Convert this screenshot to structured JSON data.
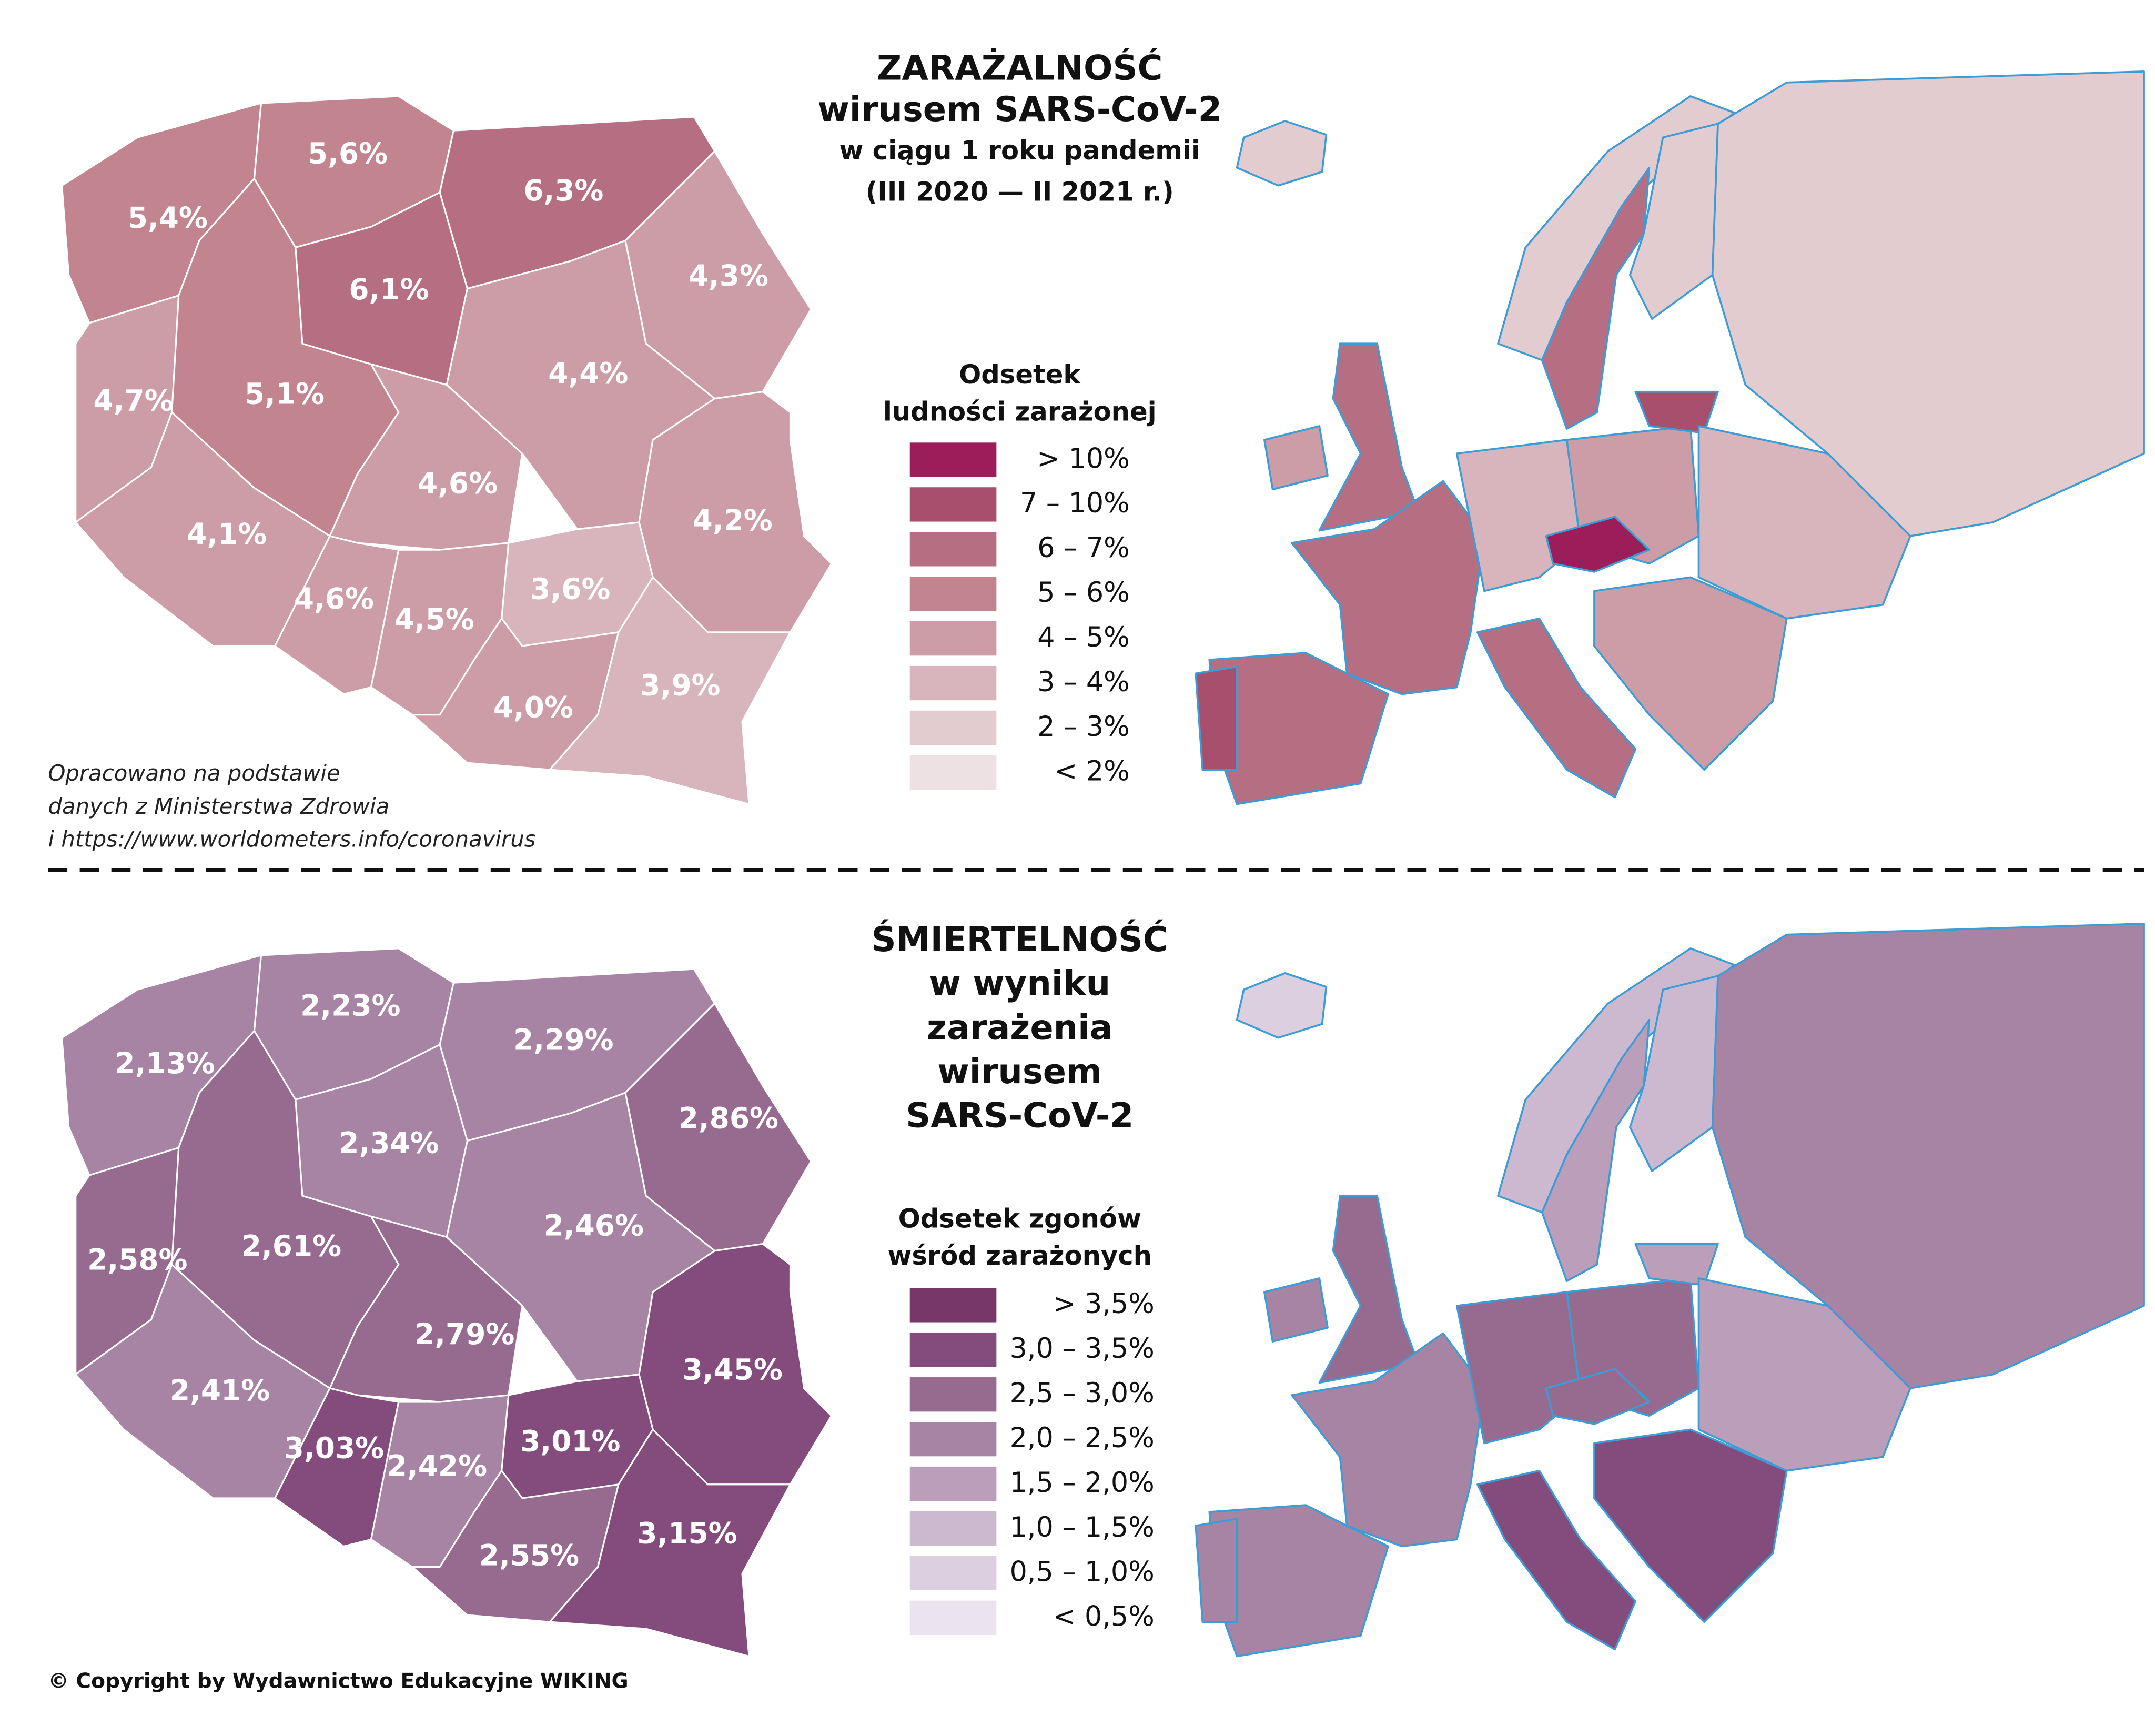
{
  "top": {
    "title": [
      "ZARAŻALNOŚĆ",
      "wirusem SARS-CoV-2",
      "w ciągu 1 roku pandemii",
      "(III 2020 — II 2021 r.)"
    ],
    "legend": {
      "title": [
        "Odsetek",
        "ludności zarażonej"
      ],
      "items": [
        {
          "label": "> 10%",
          "color": "#9b1d5a"
        },
        {
          "label": "7 – 10%",
          "color": "#a94f6e"
        },
        {
          "label": "6 –   7%",
          "color": "#b66f82"
        },
        {
          "label": "5 –   6%",
          "color": "#c2848f"
        },
        {
          "label": "4 –   5%",
          "color": "#cc9ca7"
        },
        {
          "label": "3 –   4%",
          "color": "#d8b5bc"
        },
        {
          "label": "2 –   3%",
          "color": "#e3ccd0"
        },
        {
          "label": "<   2%",
          "color": "#ede1e3"
        }
      ]
    },
    "regions": [
      {
        "label": "5,4%",
        "color": "#c2848f"
      },
      {
        "label": "5,6%",
        "color": "#c2848f"
      },
      {
        "label": "6,3%",
        "color": "#b66f82"
      },
      {
        "label": "6,1%",
        "color": "#b66f82"
      },
      {
        "label": "4,3%",
        "color": "#cc9ca7"
      },
      {
        "label": "4,7%",
        "color": "#cc9ca7"
      },
      {
        "label": "5,1%",
        "color": "#c2848f"
      },
      {
        "label": "4,4%",
        "color": "#cc9ca7"
      },
      {
        "label": "4,6%",
        "color": "#cc9ca7"
      },
      {
        "label": "4,2%",
        "color": "#cc9ca7"
      },
      {
        "label": "4,1%",
        "color": "#cc9ca7"
      },
      {
        "label": "4,6%",
        "color": "#cc9ca7"
      },
      {
        "label": "4,5%",
        "color": "#cc9ca7"
      },
      {
        "label": "3,6%",
        "color": "#d8b5bc"
      },
      {
        "label": "4,0%",
        "color": "#cc9ca7"
      },
      {
        "label": "3,9%",
        "color": "#d8b5bc"
      }
    ],
    "source": [
      "Opracowano na podstawie",
      "danych z Ministerstwa Zdrowia",
      "i https://www.worldometers.info/coronavirus"
    ]
  },
  "bottom": {
    "title": [
      "ŚMIERTELNOŚĆ",
      "w wyniku",
      "zarażenia",
      "wirusem",
      "SARS-CoV-2"
    ],
    "legend": {
      "title": [
        "Odsetek zgonów",
        "wśród zarażonych"
      ],
      "items": [
        {
          "label": "> 3,5%",
          "color": "#773768"
        },
        {
          "label": "3,0 – 3,5%",
          "color": "#844c7c"
        },
        {
          "label": "2,5 – 3,0%",
          "color": "#976a8f"
        },
        {
          "label": "2,0 – 2,5%",
          "color": "#a884a4"
        },
        {
          "label": "1,5 – 2,0%",
          "color": "#bb9eba"
        },
        {
          "label": "1,0 – 1,5%",
          "color": "#cdb9cf"
        },
        {
          "label": "0,5 – 1,0%",
          "color": "#dccfe0"
        },
        {
          "label": "< 0,5%",
          "color": "#ebe4ee"
        }
      ]
    },
    "regions": [
      {
        "label": "2,13%",
        "color": "#a884a4"
      },
      {
        "label": "2,23%",
        "color": "#a884a4"
      },
      {
        "label": "2,29%",
        "color": "#a884a4"
      },
      {
        "label": "2,34%",
        "color": "#a884a4"
      },
      {
        "label": "2,86%",
        "color": "#976a8f"
      },
      {
        "label": "2,58%",
        "color": "#976a8f"
      },
      {
        "label": "2,61%",
        "color": "#976a8f"
      },
      {
        "label": "2,46%",
        "color": "#a884a4"
      },
      {
        "label": "2,79%",
        "color": "#976a8f"
      },
      {
        "label": "3,45%",
        "color": "#844c7c"
      },
      {
        "label": "2,41%",
        "color": "#a884a4"
      },
      {
        "label": "3,03%",
        "color": "#844c7c"
      },
      {
        "label": "2,42%",
        "color": "#a884a4"
      },
      {
        "label": "3,01%",
        "color": "#844c7c"
      },
      {
        "label": "2,55%",
        "color": "#976a8f"
      },
      {
        "label": "3,15%",
        "color": "#844c7c"
      }
    ]
  },
  "copyright": "© Copyright by Wydawnictwo Edukacyjne WIKING"
}
